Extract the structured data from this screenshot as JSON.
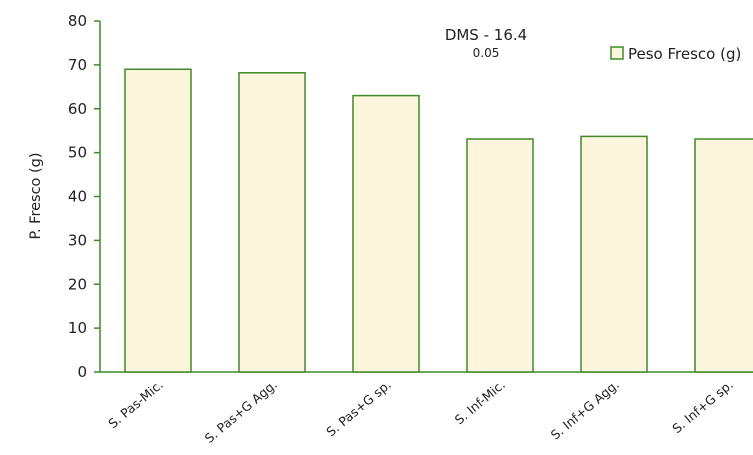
{
  "chart_data": {
    "type": "bar",
    "categories": [
      "S. Pas-Mic.",
      "S. Pas+G Agg.",
      "S. Pas+G sp.",
      "S. Inf-Mic.",
      "S. Inf+G Agg.",
      "S. Inf+G sp."
    ],
    "series": [
      {
        "name": "Peso Fresco (g)",
        "values": [
          69,
          68.2,
          63,
          53.1,
          53.7,
          53.1
        ]
      }
    ],
    "ylabel": "P. Fresco (g)",
    "xlabel": "",
    "ylim": [
      0,
      80
    ],
    "yticks": [
      "0",
      "10",
      "20",
      "30",
      "40",
      "50",
      "60",
      "70",
      "80"
    ],
    "annotation": {
      "text": "DMS - 16.4",
      "subscript": "0.05"
    },
    "legend_position": "top-right",
    "grid": false,
    "colors": {
      "bar_fill": "#fdf5dc",
      "bar_stroke": "#3f8a2a",
      "axis": "#3f8a2a"
    }
  }
}
